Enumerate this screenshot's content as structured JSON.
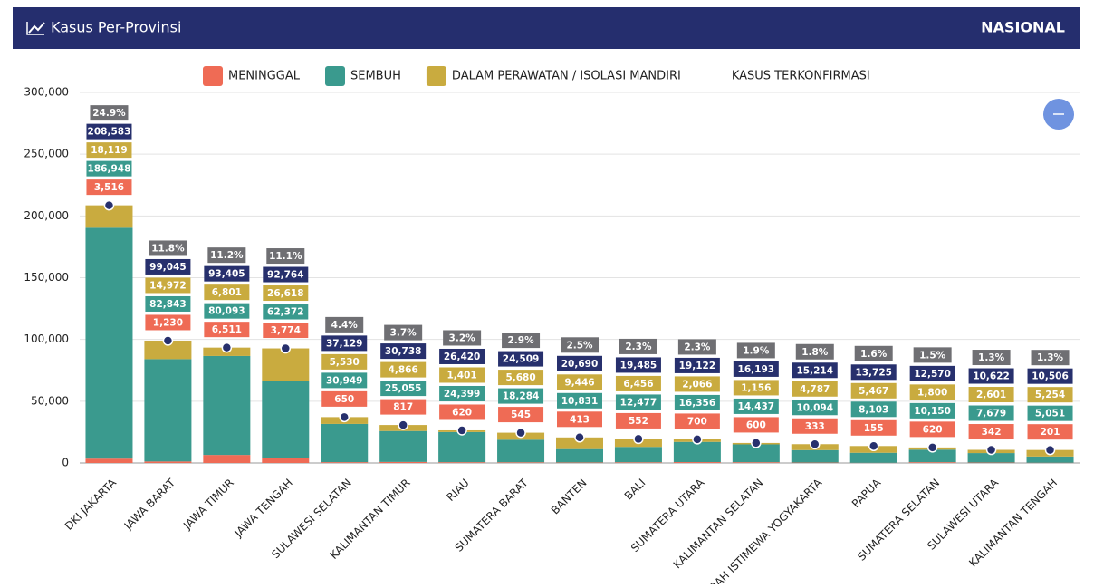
{
  "header": {
    "title": "Kasus Per-Provinsi",
    "scope": "NASIONAL"
  },
  "chart_data": {
    "type": "bar",
    "stacked": true,
    "categories": [
      "DKI JAKARTA",
      "JAWA BARAT",
      "JAWA TIMUR",
      "JAWA TENGAH",
      "SULAWESI SELATAN",
      "KALIMANTAN TIMUR",
      "RIAU",
      "SUMATERA BARAT",
      "BANTEN",
      "BALI",
      "SUMATERA UTARA",
      "KALIMANTAN SELATAN",
      "DAERAH ISTIMEWA YOGYAKARTA",
      "PAPUA",
      "SUMATERA SELATAN",
      "SULAWESI UTARA",
      "KALIMANTAN TENGAH"
    ],
    "series": [
      {
        "name": "MENINGGAL",
        "color": "#ef6b55",
        "values": [
          3516,
          1230,
          6511,
          3774,
          650,
          817,
          620,
          545,
          413,
          552,
          700,
          600,
          333,
          155,
          620,
          342,
          201
        ],
        "value_labels": [
          "3,516",
          "1,230",
          "6,511",
          "3,774",
          "650",
          "817",
          "620",
          "545",
          "413",
          "552",
          "700",
          "600",
          "333",
          "155",
          "620",
          "342",
          "201"
        ]
      },
      {
        "name": "SEMBUH",
        "color": "#3a9a8e",
        "values": [
          186948,
          82843,
          80093,
          62372,
          30949,
          25055,
          24399,
          18284,
          10831,
          12477,
          16356,
          14437,
          10094,
          8103,
          10150,
          7679,
          5051
        ],
        "value_labels": [
          "186,948",
          "82,843",
          "80,093",
          "62,372",
          "30,949",
          "25,055",
          "24,399",
          "18,284",
          "10,831",
          "12,477",
          "16,356",
          "14,437",
          "10,094",
          "8,103",
          "10,150",
          "7,679",
          "5,051"
        ]
      },
      {
        "name": "DALAM PERAWATAN / ISOLASI MANDIRI",
        "color": "#c9ab3f",
        "values": [
          18119,
          14972,
          6801,
          26618,
          5530,
          4866,
          1401,
          5680,
          9446,
          6456,
          2066,
          1156,
          4787,
          5467,
          1800,
          2601,
          5254
        ],
        "value_labels": [
          "18,119",
          "14,972",
          "6,801",
          "26,618",
          "5,530",
          "4,866",
          "1,401",
          "5,680",
          "9,446",
          "6,456",
          "2,066",
          "1,156",
          "4,787",
          "5,467",
          "1,800",
          "2,601",
          "5,254"
        ]
      },
      {
        "name": "KASUS TERKONFIRMASI",
        "type": "line",
        "color": "#27306d",
        "values": [
          208583,
          99045,
          93405,
          92764,
          37129,
          30738,
          26420,
          24509,
          20690,
          19485,
          19122,
          16193,
          15214,
          13725,
          12570,
          10622,
          10506
        ],
        "value_labels": [
          "208,583",
          "99,045",
          "93,405",
          "92,764",
          "37,129",
          "30,738",
          "26,420",
          "24,509",
          "20,690",
          "19,485",
          "19,122",
          "16,193",
          "15,214",
          "13,725",
          "12,570",
          "10,622",
          "10,506"
        ]
      }
    ],
    "percent_values": [
      24.9,
      11.8,
      11.2,
      11.1,
      4.4,
      3.7,
      3.2,
      2.9,
      2.5,
      2.3,
      2.3,
      1.9,
      1.8,
      1.6,
      1.5,
      1.3,
      1.3
    ],
    "percent_labels": [
      "24.9%",
      "11.8%",
      "11.2%",
      "11.1%",
      "4.4%",
      "3.7%",
      "3.2%",
      "2.9%",
      "2.5%",
      "2.3%",
      "2.3%",
      "1.9%",
      "1.8%",
      "1.6%",
      "1.5%",
      "1.3%",
      "1.3%"
    ],
    "percent_color": "#6f6f73",
    "ylim": [
      0,
      300000
    ],
    "yticks": [
      0,
      {
        "value": 50000,
        "label": "50,000"
      },
      {
        "value": 100000,
        "label": "100,000"
      },
      {
        "value": 150000,
        "label": "150,000"
      },
      {
        "value": 200000,
        "label": "200,000"
      },
      {
        "value": 250000,
        "label": "250,000"
      },
      {
        "value": 300000,
        "label": "300,000"
      }
    ],
    "grid": true
  }
}
